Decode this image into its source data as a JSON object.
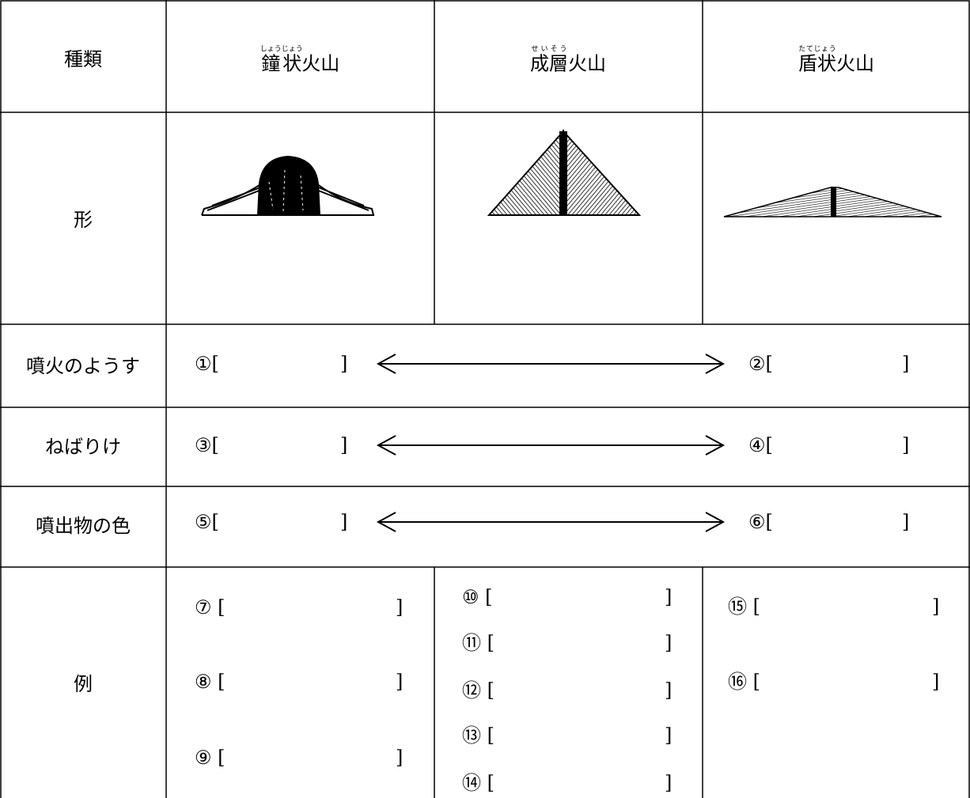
{
  "header": {
    "title": "種類",
    "columns": [
      {
        "base": "鐘状",
        "ruby": "しょうじょう",
        "rest": "火山"
      },
      {
        "base": "成層",
        "ruby": "せいそう",
        "rest": "火山"
      },
      {
        "base": "盾状",
        "ruby": "たてじょう",
        "rest": "火山"
      }
    ]
  },
  "rows": {
    "shape": {
      "label": "形"
    },
    "eruption": {
      "label": "噴火のようす",
      "left": {
        "open": "①[",
        "close": "]"
      },
      "right": {
        "open": "②[",
        "close": "]"
      }
    },
    "viscosity": {
      "label": "ねばりけ",
      "left": {
        "open": "③[",
        "close": "]"
      },
      "right": {
        "open": "④[",
        "close": "]"
      }
    },
    "color": {
      "label": "噴出物の色",
      "left": {
        "open": "⑤[",
        "close": "]"
      },
      "right": {
        "open": "⑥[",
        "close": "]"
      }
    },
    "examples": {
      "label": "例",
      "columns": [
        [
          {
            "open": "⑦ [",
            "close": "]"
          },
          {
            "open": "⑧ [",
            "close": "]"
          },
          {
            "open": "⑨ [",
            "close": "]"
          }
        ],
        [
          {
            "open": "⑩ [",
            "close": "]"
          },
          {
            "open": "⑪ [",
            "close": "]"
          },
          {
            "open": "⑫ [",
            "close": "]"
          },
          {
            "open": "⑬ [",
            "close": "]"
          },
          {
            "open": "⑭ [",
            "close": "]"
          }
        ],
        [
          {
            "open": "⑮ [",
            "close": "]"
          },
          {
            "open": "⑯ [",
            "close": "]"
          }
        ]
      ]
    }
  }
}
